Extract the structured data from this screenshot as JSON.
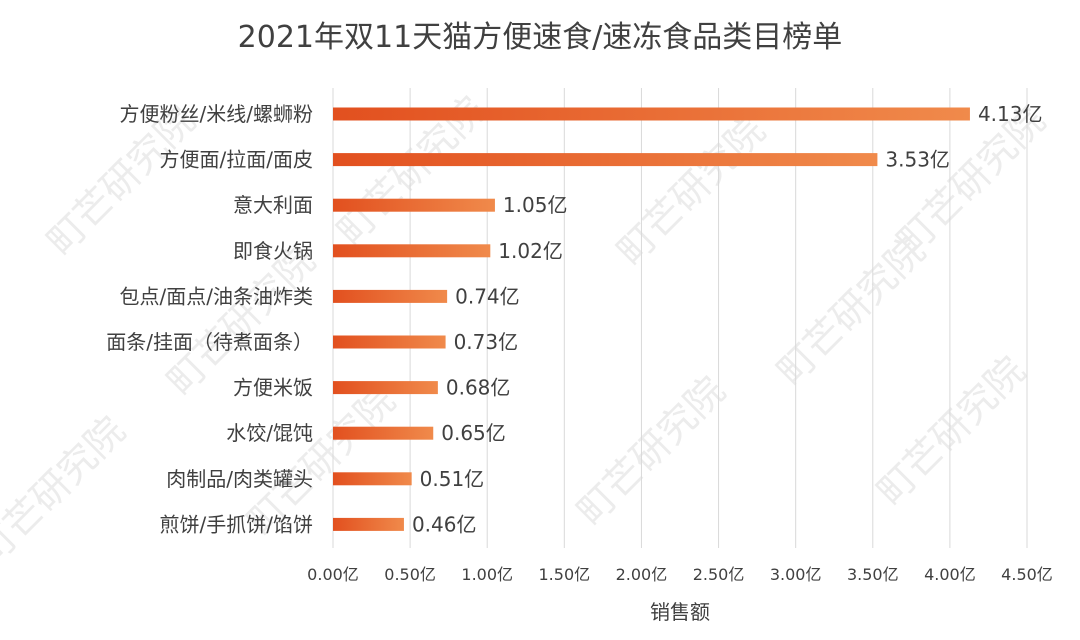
{
  "chart_data": {
    "type": "bar",
    "orientation": "horizontal",
    "title": "2021年双11天猫方便速食/速冻食品类目榜单",
    "xlabel": "销售额",
    "ylabel": "",
    "categories": [
      "方便粉丝/米线/螺蛳粉",
      "方便面/拉面/面皮",
      "意大利面",
      "即食火锅",
      "包点/面点/油条油炸类",
      "面条/挂面（待煮面条）",
      "方便米饭",
      "水饺/馄饨",
      "肉制品/肉类罐头",
      "煎饼/手抓饼/馅饼"
    ],
    "values": [
      4.13,
      3.53,
      1.05,
      1.02,
      0.74,
      0.73,
      0.68,
      0.65,
      0.51,
      0.46
    ],
    "value_labels": [
      "4.13亿",
      "3.53亿",
      "1.05亿",
      "1.02亿",
      "0.74亿",
      "0.73亿",
      "0.68亿",
      "0.65亿",
      "0.51亿",
      "0.46亿"
    ],
    "xlim": [
      0,
      4.5
    ],
    "xticks": [
      0,
      0.5,
      1.0,
      1.5,
      2.0,
      2.5,
      3.0,
      3.5,
      4.0,
      4.5
    ],
    "xtick_labels": [
      "0.00亿",
      "0.50亿",
      "1.00亿",
      "1.50亿",
      "2.00亿",
      "2.50亿",
      "3.00亿",
      "3.50亿",
      "4.00亿",
      "4.50亿"
    ],
    "grid": true,
    "bar_color_start": "#e2501f",
    "bar_color_end": "#f08a4b",
    "watermark": "町芒研究院"
  }
}
